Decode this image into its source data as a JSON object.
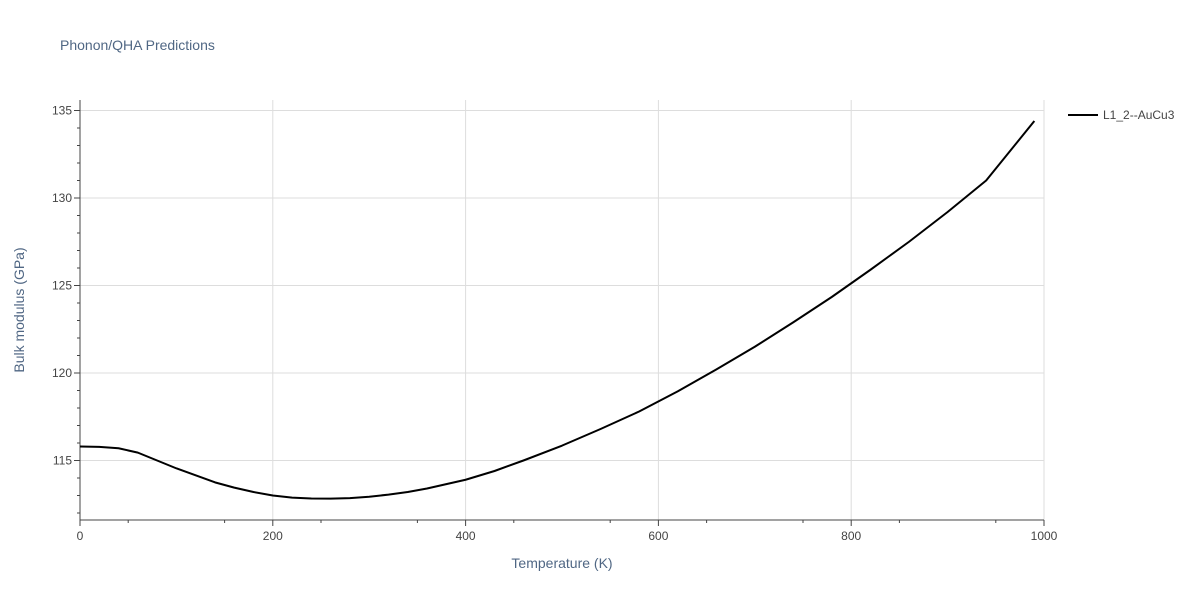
{
  "chart_data": {
    "type": "line",
    "title": "Phonon/QHA Predictions",
    "xlabel": "Temperature (K)",
    "ylabel": "Bulk modulus (GPa)",
    "xlim": [
      0,
      1000
    ],
    "ylim": [
      111.6,
      135.6
    ],
    "x_ticks": [
      0,
      200,
      400,
      600,
      800,
      1000
    ],
    "y_ticks": [
      115,
      120,
      125,
      130,
      135
    ],
    "grid": true,
    "legend_position": "top-right",
    "series": [
      {
        "name": "L1_2--AuCu3",
        "color": "#000000",
        "x": [
          0,
          20,
          40,
          60,
          80,
          100,
          120,
          140,
          160,
          180,
          200,
          220,
          240,
          260,
          280,
          300,
          320,
          340,
          360,
          380,
          400,
          430,
          460,
          500,
          540,
          580,
          620,
          660,
          700,
          740,
          780,
          820,
          860,
          900,
          940,
          990
        ],
        "y": [
          115.8,
          115.78,
          115.7,
          115.45,
          115.0,
          114.55,
          114.15,
          113.75,
          113.45,
          113.2,
          113.0,
          112.88,
          112.83,
          112.82,
          112.85,
          112.93,
          113.05,
          113.2,
          113.4,
          113.65,
          113.9,
          114.4,
          115.0,
          115.85,
          116.8,
          117.8,
          118.95,
          120.2,
          121.5,
          122.9,
          124.35,
          125.9,
          127.5,
          129.2,
          131.0,
          134.4
        ]
      }
    ]
  }
}
